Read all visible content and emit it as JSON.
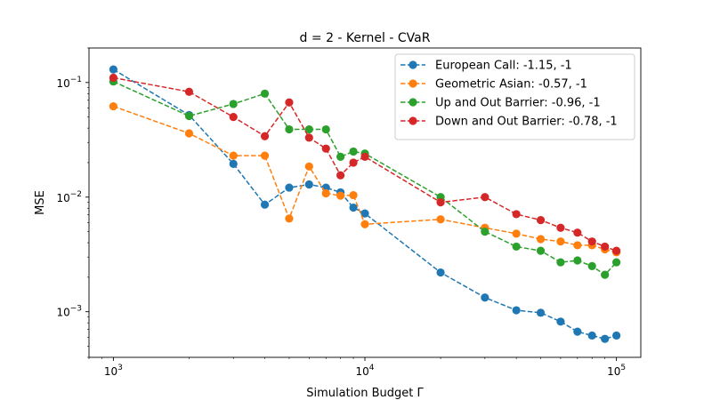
{
  "chart_data": {
    "type": "line",
    "title": "d = 2 - Kernel - CVaR",
    "xlabel": "Simulation Budget Γ",
    "ylabel": "MSE",
    "xscale": "log",
    "yscale": "log",
    "xlim": [
      800,
      125000
    ],
    "ylim": [
      0.0004,
      0.2
    ],
    "xticks": [
      1000,
      10000,
      100000
    ],
    "xtick_labels": [
      {
        "base": "10",
        "exp": "3"
      },
      {
        "base": "10",
        "exp": "4"
      },
      {
        "base": "10",
        "exp": "5"
      }
    ],
    "yticks": [
      0.001,
      0.01,
      0.1
    ],
    "ytick_labels": [
      {
        "base": "10",
        "exp": "−3"
      },
      {
        "base": "10",
        "exp": "−2"
      },
      {
        "base": "10",
        "exp": "−1"
      }
    ],
    "legend_position": "top-right",
    "x": [
      1000,
      2000,
      3000,
      4000,
      5000,
      6000,
      7000,
      8000,
      9000,
      10000,
      20000,
      30000,
      40000,
      50000,
      60000,
      70000,
      80000,
      90000,
      100000
    ],
    "series": [
      {
        "name": "European Call: -1.15, -1",
        "color": "#1f77b4",
        "values": [
          0.13,
          0.052,
          0.0195,
          0.0086,
          0.0121,
          0.0129,
          0.0121,
          0.011,
          0.0081,
          0.0072,
          0.0022,
          0.00133,
          0.00103,
          0.00098,
          0.00082,
          0.00067,
          0.00062,
          0.00058,
          0.00062
        ]
      },
      {
        "name": "Geometric Asian: -0.57, -1",
        "color": "#ff7f0e",
        "values": [
          0.062,
          0.036,
          0.023,
          0.023,
          0.0065,
          0.0185,
          0.0108,
          0.0103,
          0.0104,
          0.0058,
          0.0064,
          0.0054,
          0.0048,
          0.0043,
          0.0041,
          0.0038,
          0.0038,
          0.0035,
          0.0033
        ]
      },
      {
        "name": "Up and Out Barrier: -0.96, -1",
        "color": "#2ca02c",
        "values": [
          0.102,
          0.051,
          0.065,
          0.08,
          0.039,
          0.039,
          0.039,
          0.0225,
          0.025,
          0.024,
          0.01,
          0.005,
          0.0037,
          0.0034,
          0.0027,
          0.0028,
          0.0025,
          0.0021,
          0.0027
        ]
      },
      {
        "name": "Down and Out Barrier: -0.78, -1",
        "color": "#d62728",
        "values": [
          0.11,
          0.083,
          0.05,
          0.034,
          0.067,
          0.033,
          0.0265,
          0.0155,
          0.02,
          0.0225,
          0.009,
          0.01,
          0.0071,
          0.0063,
          0.0054,
          0.0049,
          0.0041,
          0.0037,
          0.0034
        ]
      }
    ]
  }
}
